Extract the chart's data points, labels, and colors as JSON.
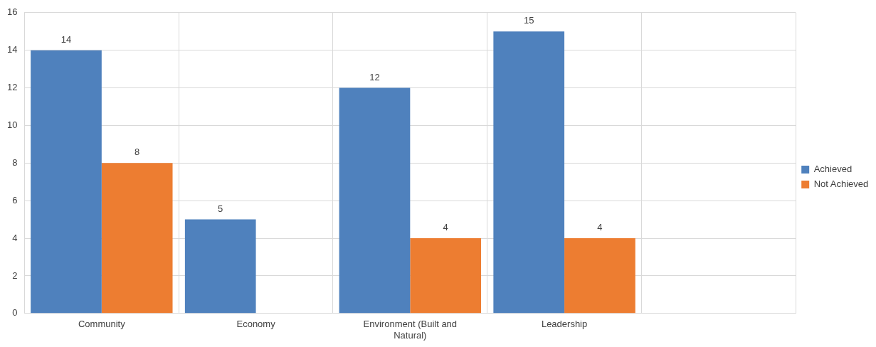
{
  "chart_data": {
    "type": "bar",
    "categories": [
      "Community",
      "Economy",
      "Environment (Built and Natural)",
      "Leadership",
      null
    ],
    "series": [
      {
        "name": "Achieved",
        "color": "#4f81bd",
        "values": [
          14,
          5,
          12,
          15,
          null
        ]
      },
      {
        "name": "Not Achieved",
        "color": "#ed7d31",
        "values": [
          8,
          null,
          4,
          4,
          null
        ]
      }
    ],
    "ylim": [
      0,
      16
    ],
    "yticks": [
      0,
      2,
      4,
      6,
      8,
      10,
      12,
      14,
      16
    ],
    "grid": true,
    "legend": "right",
    "data_labels": true
  }
}
